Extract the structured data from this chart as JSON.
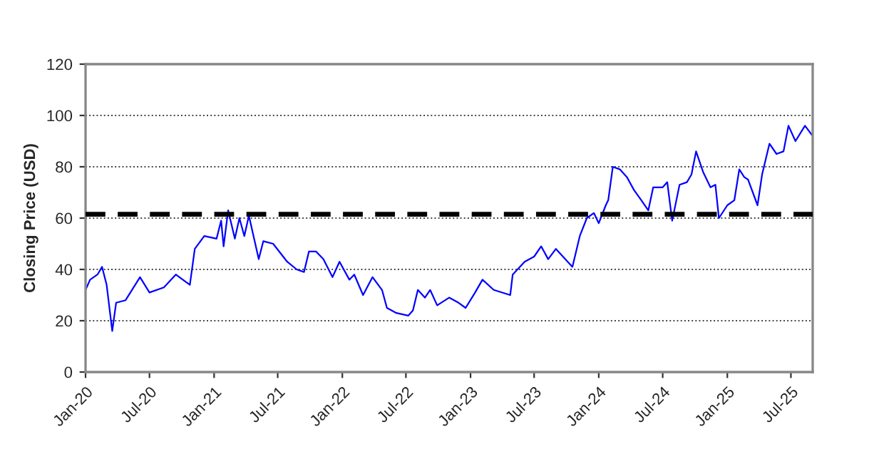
{
  "chart_data": {
    "type": "line",
    "ylabel": "Closing Price (USD)",
    "x": [
      "2020-01-01",
      "2020-01-14",
      "2020-02-04",
      "2020-02-17",
      "2020-03-01",
      "2020-03-17",
      "2020-03-28",
      "2020-04-24",
      "2020-06-04",
      "2020-07-01",
      "2020-08-11",
      "2020-09-14",
      "2020-10-24",
      "2020-11-07",
      "2020-12-04",
      "2021-01-08",
      "2021-01-21",
      "2021-01-28",
      "2021-02-10",
      "2021-03-01",
      "2021-03-14",
      "2021-03-28",
      "2021-04-10",
      "2021-05-08",
      "2021-05-21",
      "2021-06-18",
      "2021-07-28",
      "2021-08-24",
      "2021-09-14",
      "2021-09-28",
      "2021-10-18",
      "2021-11-08",
      "2021-12-04",
      "2021-12-24",
      "2022-01-21",
      "2022-02-04",
      "2022-03-01",
      "2022-03-28",
      "2022-04-24",
      "2022-05-08",
      "2022-06-04",
      "2022-07-08",
      "2022-07-21",
      "2022-08-04",
      "2022-08-24",
      "2022-09-08",
      "2022-09-28",
      "2022-11-01",
      "2022-11-28",
      "2022-12-18",
      "2023-01-14",
      "2023-02-04",
      "2023-03-08",
      "2023-04-24",
      "2023-05-01",
      "2023-06-04",
      "2023-07-01",
      "2023-07-21",
      "2023-08-10",
      "2023-09-01",
      "2023-09-21",
      "2023-10-18",
      "2023-11-08",
      "2023-11-28",
      "2023-12-18",
      "2024-01-01",
      "2024-01-21",
      "2024-01-28",
      "2024-02-10",
      "2024-03-01",
      "2024-03-21",
      "2024-04-10",
      "2024-05-01",
      "2024-05-21",
      "2024-06-04",
      "2024-07-01",
      "2024-07-14",
      "2024-07-28",
      "2024-08-18",
      "2024-09-08",
      "2024-09-21",
      "2024-10-04",
      "2024-10-24",
      "2024-11-14",
      "2024-11-28",
      "2024-12-08",
      "2025-01-01",
      "2025-01-21",
      "2025-02-04",
      "2025-02-18",
      "2025-03-01",
      "2025-03-28",
      "2025-04-10",
      "2025-05-01",
      "2025-05-21",
      "2025-06-10",
      "2025-06-24",
      "2025-07-14",
      "2025-08-10",
      "2025-09-01"
    ],
    "series": [
      {
        "color": "#0000ff",
        "values": [
          32,
          36,
          38,
          41,
          34,
          16,
          27,
          28,
          37,
          31,
          33,
          38,
          34,
          48,
          53,
          52,
          59,
          49,
          63,
          52,
          60,
          53,
          61,
          44,
          51,
          50,
          43,
          40,
          39,
          47,
          47,
          44,
          37,
          43,
          36,
          38,
          30,
          37,
          32,
          25,
          23,
          22,
          24,
          32,
          29,
          32,
          26,
          29,
          27,
          25,
          31,
          36,
          32,
          30,
          38,
          43,
          45,
          49,
          44,
          48,
          45,
          41,
          53,
          60,
          62,
          58,
          65,
          67,
          80,
          79,
          76,
          71,
          67,
          63,
          72,
          72,
          74,
          59,
          73,
          74,
          77,
          86,
          78,
          72,
          73,
          60,
          65,
          67,
          79,
          76,
          75,
          65,
          77,
          89,
          85,
          86,
          96,
          90,
          96,
          92
        ]
      }
    ],
    "xlim": [
      "2020-01-01",
      "2025-09-01"
    ],
    "xticks": [
      {
        "value": "2020-01-01",
        "label": "Jan-20"
      },
      {
        "value": "2020-07-01",
        "label": "Jul-20"
      },
      {
        "value": "2021-01-01",
        "label": "Jan-21"
      },
      {
        "value": "2021-07-01",
        "label": "Jul-21"
      },
      {
        "value": "2022-01-01",
        "label": "Jan-22"
      },
      {
        "value": "2022-07-01",
        "label": "Jul-22"
      },
      {
        "value": "2023-01-01",
        "label": "Jan-23"
      },
      {
        "value": "2023-07-01",
        "label": "Jul-23"
      },
      {
        "value": "2024-01-01",
        "label": "Jan-24"
      },
      {
        "value": "2024-07-01",
        "label": "Jul-24"
      },
      {
        "value": "2025-01-01",
        "label": "Jan-25"
      },
      {
        "value": "2025-07-01",
        "label": "Jul-25"
      }
    ],
    "ylim": [
      0,
      120
    ],
    "yticks": [
      0,
      20,
      40,
      60,
      80,
      100,
      120
    ],
    "grid": "y",
    "line_style": "solid",
    "ref_lines": [
      {
        "axis": "y",
        "value": 61.5,
        "color": "#000000",
        "line_style": "dashed"
      }
    ]
  }
}
